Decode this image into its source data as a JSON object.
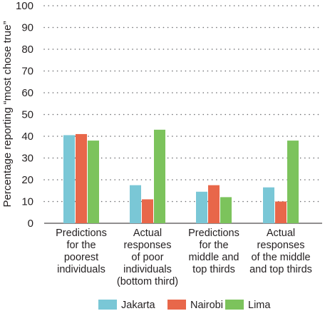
{
  "chart_data": {
    "type": "bar",
    "title": "",
    "xlabel": "",
    "ylabel": "Percentage reporting “most chose true”",
    "ylim": [
      0,
      100
    ],
    "yticks": [
      0,
      10,
      20,
      30,
      40,
      50,
      60,
      70,
      80,
      90,
      100
    ],
    "grid": true,
    "legend_position": "bottom",
    "categories": [
      [
        "Predictions",
        "for the",
        "poorest",
        "individuals"
      ],
      [
        "Actual",
        "responses",
        "of poor",
        "individuals",
        "(bottom third)"
      ],
      [
        "Predictions",
        "for the",
        "middle and",
        "top thirds"
      ],
      [
        "Actual",
        "responses",
        "of the middle",
        "and top thirds"
      ]
    ],
    "series": [
      {
        "name": "Jakarta",
        "color": "#7ac7d6",
        "values": [
          40.5,
          17.5,
          14.5,
          16.5
        ]
      },
      {
        "name": "Nairobi",
        "color": "#e8674a",
        "values": [
          41,
          11,
          17.5,
          10
        ]
      },
      {
        "name": "Lima",
        "color": "#7cc35c",
        "values": [
          38,
          43,
          12,
          38
        ]
      }
    ]
  }
}
